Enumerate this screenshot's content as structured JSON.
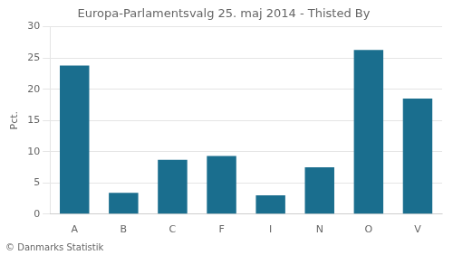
{
  "chart_data": {
    "type": "bar",
    "title": "Europa-Parlamentsvalg 25. maj 2014 - Thisted By",
    "ylabel": "Pct.",
    "annotations": [
      "© Danmarks Statistik"
    ],
    "categories": [
      "A",
      "B",
      "C",
      "F",
      "I",
      "N",
      "O",
      "V"
    ],
    "values": [
      23.8,
      3.4,
      8.7,
      9.3,
      3.0,
      7.5,
      26.3,
      18.5
    ],
    "color": "#1a6e8e",
    "ylim": [
      0,
      30
    ],
    "yticks": [
      0,
      5,
      10,
      15,
      20,
      25,
      30
    ],
    "grid": true
  }
}
